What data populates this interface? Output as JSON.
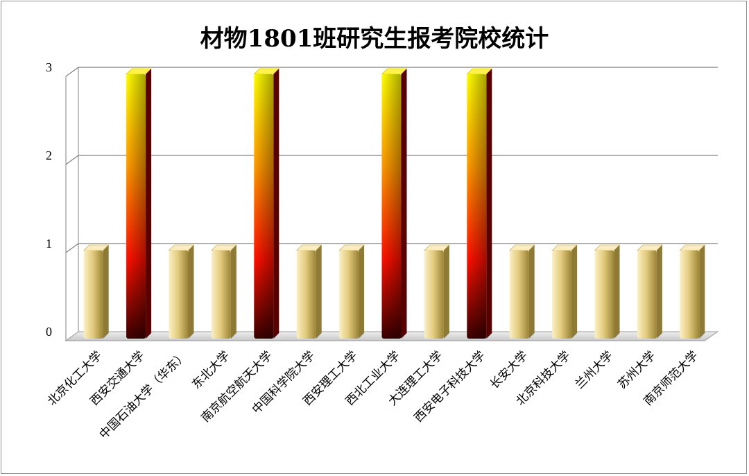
{
  "chart_data": {
    "type": "bar",
    "title": "材物1801班研究生报考院校统计",
    "categories": [
      "北京化工大学",
      "西安交通大学",
      "中国石油大学（华东）",
      "东北大学",
      "南京航空航天大学",
      "中国科学院大学",
      "西安理工大学",
      "西北工业大学",
      "大连理工大学",
      "西安电子科技大学",
      "长安大学",
      "北京科技大学",
      "兰州大学",
      "苏州大学",
      "南京师范大学"
    ],
    "values": [
      1,
      3,
      1,
      1,
      3,
      1,
      1,
      3,
      1,
      3,
      1,
      1,
      1,
      1,
      1
    ],
    "ylim": [
      0,
      3
    ],
    "yticks": [
      "0",
      "1",
      "2",
      "3"
    ],
    "grid": true,
    "legend": "none",
    "colors": {
      "low_bar": [
        "#f3e2aa",
        "#d9c070",
        "#a9913f"
      ],
      "high_bar": [
        "#ffff00",
        "#ff8c00",
        "#ff0000",
        "#4a0000"
      ],
      "grid": "#808080"
    }
  }
}
